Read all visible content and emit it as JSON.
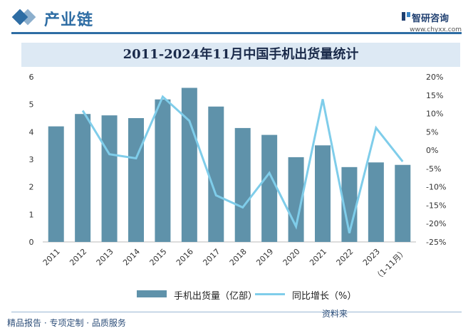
{
  "header": {
    "section_title": "产业链",
    "brand_name": "智研咨询",
    "brand_url": "www.chyxx.com"
  },
  "chart_data": {
    "type": "bar",
    "title": "2011-2024年11月中国手机出货量统计",
    "categories": [
      "2011",
      "2012",
      "2013",
      "2014",
      "2015",
      "2016",
      "2017",
      "2018",
      "2019",
      "2020",
      "2021",
      "2022",
      "2023",
      "（1-11月）"
    ],
    "series": [
      {
        "name": "手机出货量（亿部）",
        "type": "bar",
        "axis": "left",
        "color": "#5f92aa",
        "values": [
          4.2,
          4.65,
          4.6,
          4.5,
          5.18,
          5.6,
          4.92,
          4.14,
          3.89,
          3.08,
          3.51,
          2.72,
          2.89,
          2.8
        ]
      },
      {
        "name": "同比增长（%）",
        "type": "line",
        "axis": "right",
        "color": "#7fcdea",
        "values": [
          null,
          10.8,
          -1.1,
          -2.2,
          14.6,
          8.0,
          -12.3,
          -15.6,
          -6.2,
          -20.8,
          13.9,
          -22.6,
          6.1,
          -3.1
        ]
      }
    ],
    "y_left": {
      "range": [
        0,
        6
      ],
      "ticks": [
        "0",
        "1",
        "2",
        "3",
        "4",
        "5",
        "6"
      ]
    },
    "y_right": {
      "range": [
        -25,
        20
      ],
      "ticks": [
        "20%",
        "15%",
        "10%",
        "5%",
        "0%",
        "-5%",
        "-10%",
        "-15%",
        "-20%",
        "-25%"
      ]
    },
    "grid": false,
    "legend_position": "bottom"
  },
  "legend": {
    "bar_label": "手机出货量（亿部）",
    "line_label": "同比增长（%）"
  },
  "footer": {
    "left_text": "精品报告 · 专项定制 · 品质服务",
    "right_text": "资料来"
  }
}
